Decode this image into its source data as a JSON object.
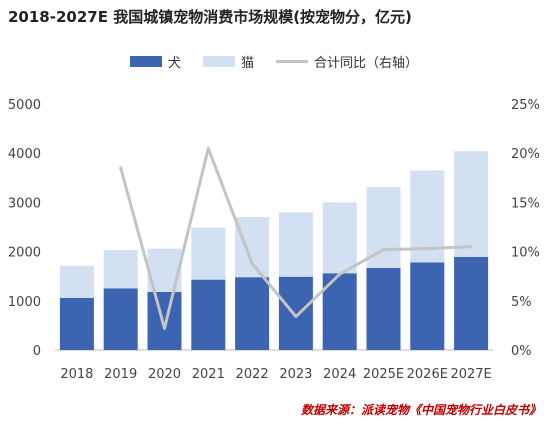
{
  "colors": {
    "dog": "#3d64b0",
    "cat": "#d3e0f1",
    "growth": "#c4c4c4",
    "source": "#c00000"
  },
  "chart_data": {
    "type": "bar",
    "stacked": true,
    "title": "2018-2027E  我国城镇宠物消费市场规模(按宠物分，亿元)",
    "categories": [
      "2018",
      "2019",
      "2020",
      "2021",
      "2022",
      "2023",
      "2024",
      "2025E",
      "2026E",
      "2027E"
    ],
    "series": [
      {
        "name": "犬",
        "type": "bar",
        "axis": "left",
        "values": [
          1060,
          1250,
          1180,
          1430,
          1480,
          1490,
          1560,
          1670,
          1780,
          1890
        ]
      },
      {
        "name": "猫",
        "type": "bar",
        "axis": "left",
        "values": [
          650,
          780,
          880,
          1060,
          1220,
          1310,
          1440,
          1640,
          1870,
          2150
        ]
      },
      {
        "name": "合计同比（右轴）",
        "type": "line",
        "axis": "right",
        "values": [
          null,
          0.185,
          0.022,
          0.205,
          0.088,
          0.034,
          0.077,
          0.102,
          0.103,
          0.105
        ]
      }
    ],
    "ylim_left": [
      0,
      5000
    ],
    "yticks_left": [
      "0",
      "1000",
      "2000",
      "3000",
      "4000",
      "5000"
    ],
    "ylim_right": [
      0,
      0.25
    ],
    "yticks_right": [
      "0%",
      "5%",
      "10%",
      "15%",
      "20%",
      "25%"
    ],
    "grid": false,
    "legend_position": "top"
  },
  "source": "数据来源：派读宠物《中国宠物行业白皮书》"
}
